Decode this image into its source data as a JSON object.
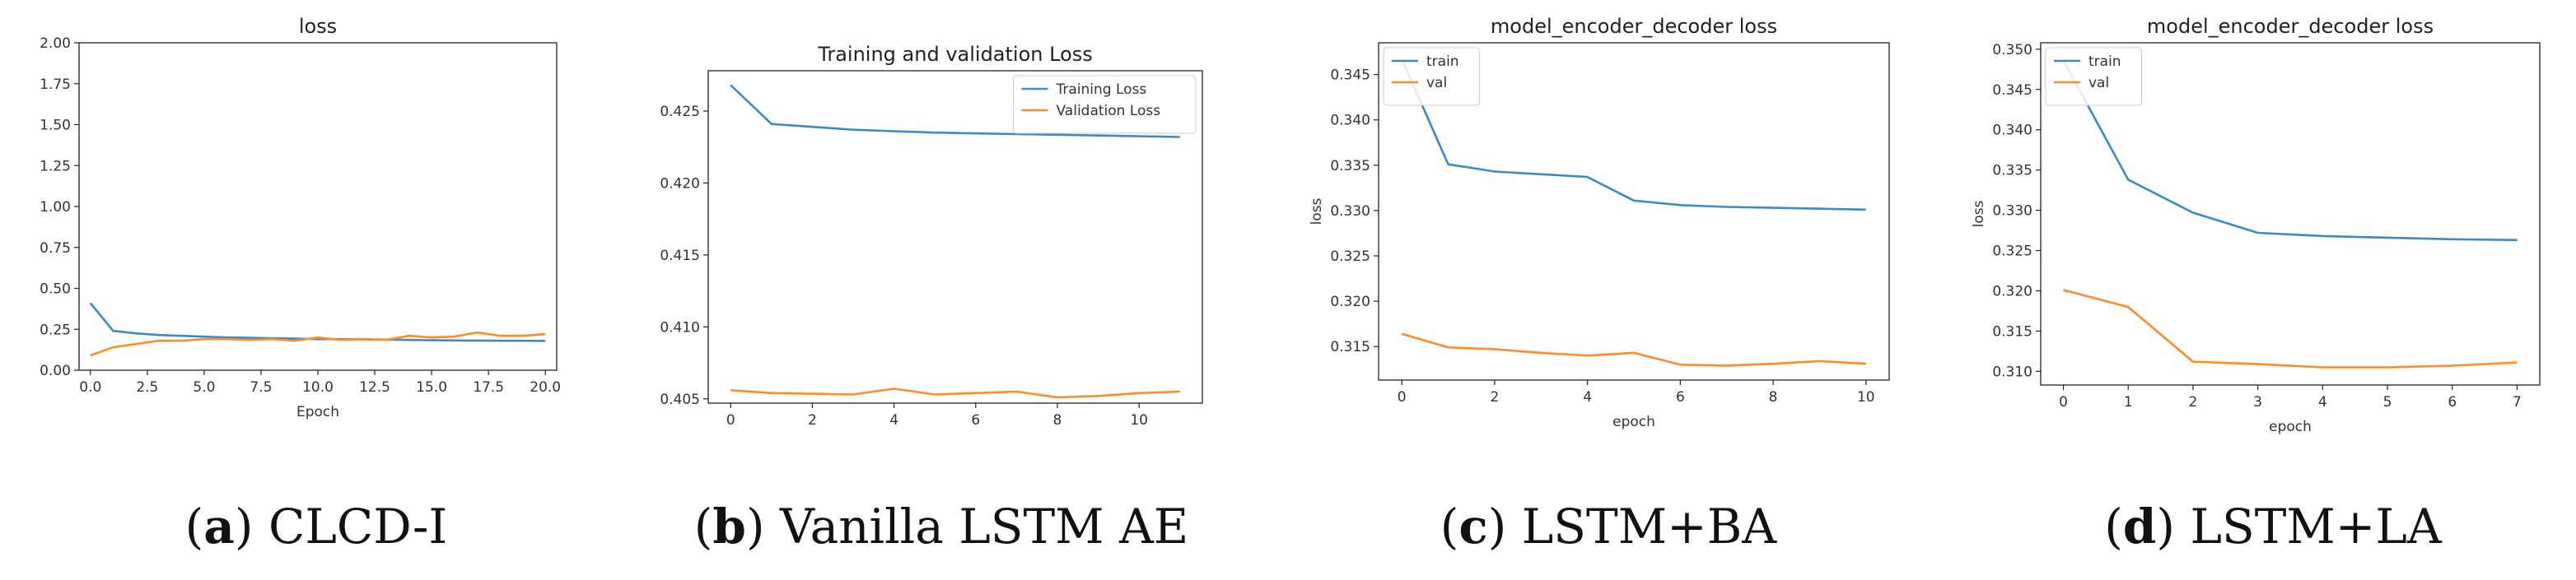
{
  "colors": {
    "blue": "#3b8bc4",
    "orange": "#ff8c26"
  },
  "captions": [
    {
      "letter": "a",
      "text": " CLCD-I"
    },
    {
      "letter": "b",
      "text": " Vanilla LSTM AE"
    },
    {
      "letter": "c",
      "text": " LSTM+BA"
    },
    {
      "letter": "d",
      "text": " LSTM+LA"
    }
  ],
  "chart_data": [
    {
      "type": "line",
      "title": "loss",
      "xlabel": "Epoch",
      "ylabel": "",
      "xlim": [
        -0.5,
        20.5
      ],
      "ylim": [
        0.0,
        2.0
      ],
      "xticks": [
        0,
        2.5,
        5,
        7.5,
        10,
        12.5,
        15,
        17.5,
        20
      ],
      "xtick_labels": [
        "0.0",
        "2.5",
        "5.0",
        "7.5",
        "10.0",
        "12.5",
        "15.0",
        "17.5",
        "20.0"
      ],
      "yticks": [
        0,
        0.25,
        0.5,
        0.75,
        1.0,
        1.25,
        1.5,
        1.75,
        2.0
      ],
      "ytick_labels": [
        "0.00",
        "0.25",
        "0.50",
        "0.75",
        "1.00",
        "1.25",
        "1.50",
        "1.75",
        "2.00"
      ],
      "legend": null,
      "series": [
        {
          "color": "#3b8bc4",
          "x": [
            0,
            1,
            2,
            3,
            4,
            5,
            6,
            7,
            8,
            9,
            10,
            11,
            12,
            13,
            14,
            15,
            16,
            17,
            18,
            19,
            20
          ],
          "values": [
            0.41,
            0.24,
            0.225,
            0.215,
            0.21,
            0.205,
            0.2,
            0.198,
            0.195,
            0.193,
            0.19,
            0.19,
            0.188,
            0.187,
            0.185,
            0.183,
            0.182,
            0.181,
            0.18,
            0.18,
            0.179
          ]
        },
        {
          "color": "#ff8c26",
          "x": [
            0,
            1,
            2,
            3,
            4,
            5,
            6,
            7,
            8,
            9,
            10,
            11,
            12,
            13,
            14,
            15,
            16,
            17,
            18,
            19,
            20
          ],
          "values": [
            0.09,
            0.14,
            0.16,
            0.18,
            0.18,
            0.19,
            0.19,
            0.185,
            0.19,
            0.18,
            0.2,
            0.185,
            0.19,
            0.185,
            0.21,
            0.2,
            0.205,
            0.23,
            0.21,
            0.21,
            0.22
          ]
        }
      ]
    },
    {
      "type": "line",
      "title": "Training and validation Loss",
      "xlabel": "",
      "ylabel": "",
      "xlim": [
        -0.55,
        11.55
      ],
      "ylim": [
        0.4047,
        0.4278
      ],
      "xticks": [
        0,
        2,
        4,
        6,
        8,
        10
      ],
      "xtick_labels": [
        "0",
        "2",
        "4",
        "6",
        "8",
        "10"
      ],
      "yticks": [
        0.405,
        0.41,
        0.415,
        0.42,
        0.425
      ],
      "ytick_labels": [
        "0.405",
        "0.410",
        "0.415",
        "0.420",
        "0.425"
      ],
      "legend": "top-right",
      "series": [
        {
          "name": "Training Loss",
          "color": "#3b8bc4",
          "x": [
            0,
            1,
            2,
            3,
            4,
            5,
            6,
            7,
            8,
            9,
            10,
            11
          ],
          "values": [
            0.4268,
            0.4241,
            0.4239,
            0.4237,
            0.4236,
            0.4235,
            0.42345,
            0.4234,
            0.42335,
            0.4233,
            0.42325,
            0.4232
          ]
        },
        {
          "name": "Validation Loss",
          "color": "#ff8c26",
          "x": [
            0,
            1,
            2,
            3,
            4,
            5,
            6,
            7,
            8,
            9,
            10,
            11
          ],
          "values": [
            0.4056,
            0.4054,
            0.40535,
            0.4053,
            0.4057,
            0.4053,
            0.4054,
            0.4055,
            0.4051,
            0.4052,
            0.4054,
            0.4055
          ]
        }
      ]
    },
    {
      "type": "line",
      "title": "model_encoder_decoder loss",
      "xlabel": "epoch",
      "ylabel": "loss",
      "xlim": [
        -0.5,
        10.5
      ],
      "ylim": [
        0.3113,
        0.3485
      ],
      "xticks": [
        0,
        2,
        4,
        6,
        8,
        10
      ],
      "xtick_labels": [
        "0",
        "2",
        "4",
        "6",
        "8",
        "10"
      ],
      "yticks": [
        0.315,
        0.32,
        0.325,
        0.33,
        0.335,
        0.34,
        0.345
      ],
      "ytick_labels": [
        "0.315",
        "0.320",
        "0.325",
        "0.330",
        "0.335",
        "0.340",
        "0.345"
      ],
      "legend": "top-left",
      "series": [
        {
          "name": "train",
          "color": "#3b8bc4",
          "x": [
            0,
            1,
            2,
            3,
            4,
            5,
            6,
            7,
            8,
            9,
            10
          ],
          "values": [
            0.3467,
            0.3351,
            0.3343,
            0.334,
            0.3337,
            0.3311,
            0.3306,
            0.3304,
            0.3303,
            0.3302,
            0.3301
          ]
        },
        {
          "name": "val",
          "color": "#ff8c26",
          "x": [
            0,
            1,
            2,
            3,
            4,
            5,
            6,
            7,
            8,
            9,
            10
          ],
          "values": [
            0.3164,
            0.3149,
            0.3147,
            0.3143,
            0.314,
            0.3143,
            0.313,
            0.3129,
            0.3131,
            0.3134,
            0.3131
          ]
        }
      ]
    },
    {
      "type": "line",
      "title": "model_encoder_decoder loss",
      "xlabel": "epoch",
      "ylabel": "loss",
      "xlim": [
        -0.35,
        7.35
      ],
      "ylim": [
        0.3083,
        0.3508
      ],
      "xticks": [
        0,
        1,
        2,
        3,
        4,
        5,
        6,
        7
      ],
      "xtick_labels": [
        "0",
        "1",
        "2",
        "3",
        "4",
        "5",
        "6",
        "7"
      ],
      "yticks": [
        0.31,
        0.315,
        0.32,
        0.325,
        0.33,
        0.335,
        0.34,
        0.345,
        0.35
      ],
      "ytick_labels": [
        "0.310",
        "0.315",
        "0.320",
        "0.325",
        "0.330",
        "0.335",
        "0.340",
        "0.345",
        "0.350"
      ],
      "legend": "top-left",
      "series": [
        {
          "name": "train",
          "color": "#3b8bc4",
          "x": [
            0,
            1,
            2,
            3,
            4,
            5,
            6,
            7
          ],
          "values": [
            0.3486,
            0.3338,
            0.3297,
            0.3272,
            0.3268,
            0.3266,
            0.3264,
            0.3263
          ]
        },
        {
          "name": "val",
          "color": "#ff8c26",
          "x": [
            0,
            1,
            2,
            3,
            4,
            5,
            6,
            7
          ],
          "values": [
            0.3201,
            0.318,
            0.3112,
            0.3109,
            0.3105,
            0.3105,
            0.3107,
            0.3111
          ]
        }
      ]
    }
  ]
}
